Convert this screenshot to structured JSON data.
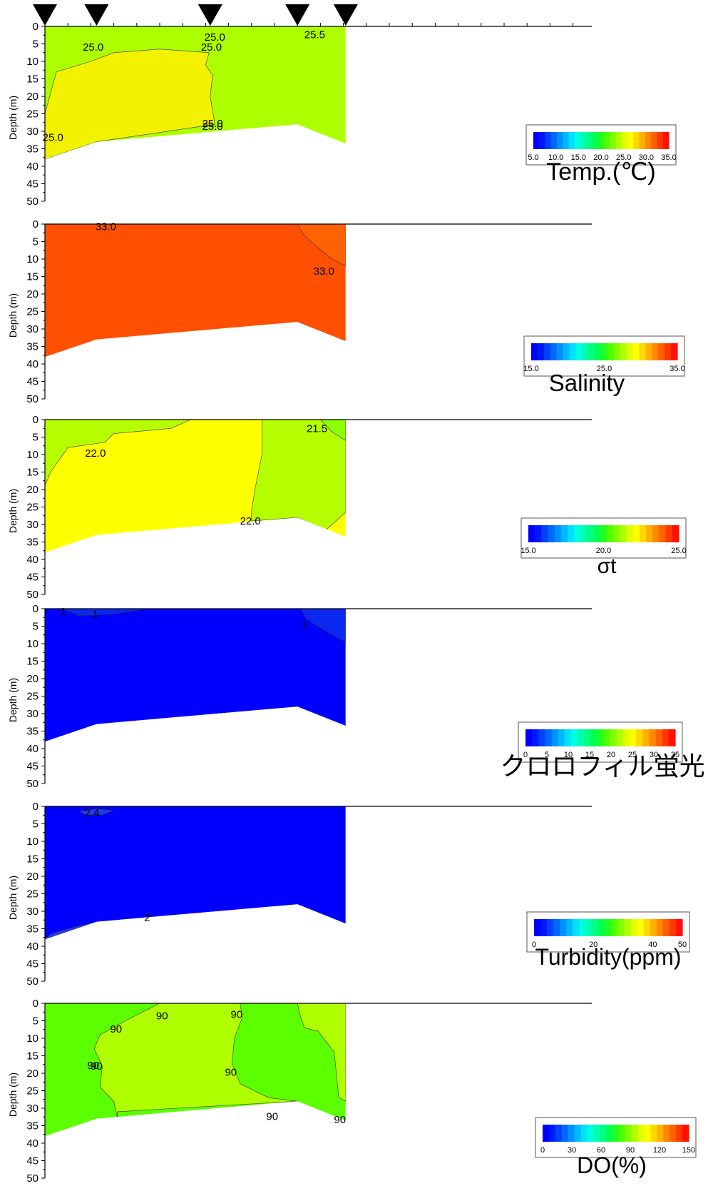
{
  "station_markers": [
    0.0,
    4.5,
    14.4,
    22.0,
    26.2
  ],
  "x_axis": {
    "min": 0,
    "max": 48,
    "tick_step": 2
  },
  "chart_data": [
    {
      "type": "contour",
      "ylabel": "Depth (m)",
      "ylim": [
        0,
        50
      ],
      "y_ticks": [
        0,
        5,
        10,
        15,
        20,
        25,
        30,
        35,
        40,
        45,
        50
      ],
      "bottom_profile": [
        [
          0,
          38
        ],
        [
          4.5,
          33
        ],
        [
          22.0,
          28
        ],
        [
          26.2,
          33.5
        ]
      ],
      "base_color": "#adff00",
      "regions": [
        {
          "color": "#f2f200",
          "points": [
            [
              0,
              25
            ],
            [
              0.5,
              19
            ],
            [
              1.0,
              13
            ],
            [
              4.0,
              10
            ],
            [
              6.0,
              7.5
            ],
            [
              10.0,
              6.5
            ],
            [
              14.3,
              7.5
            ],
            [
              14.0,
              11
            ],
            [
              14.6,
              14
            ],
            [
              14.4,
              20
            ],
            [
              14.8,
              28
            ],
            [
              4.5,
              33
            ],
            [
              0,
              38
            ]
          ]
        }
      ],
      "contour_labels": [
        "25.0",
        "25.0",
        "25.0",
        "25.5",
        "25.0",
        "25.0",
        "25.0"
      ],
      "legend": {
        "title": "Temp.(℃)",
        "min": 5.0,
        "max": 35.0,
        "tick_labels": [
          "5.0",
          "10.0",
          "15.0",
          "20.0",
          "25.0",
          "30.0",
          "35.0"
        ]
      }
    },
    {
      "type": "contour",
      "ylabel": "Depth (m)",
      "ylim": [
        0,
        50
      ],
      "y_ticks": [
        0,
        5,
        10,
        15,
        20,
        25,
        30,
        35,
        40,
        45,
        50
      ],
      "bottom_profile": [
        [
          0,
          38
        ],
        [
          4.5,
          33
        ],
        [
          22.0,
          28
        ],
        [
          26.2,
          33.5
        ]
      ],
      "base_color": "#ff4f00",
      "regions": [
        {
          "color": "#ff6200",
          "points": [
            [
              22.0,
              0
            ],
            [
              26.2,
              0
            ],
            [
              26.2,
              12
            ],
            [
              25.0,
              10
            ],
            [
              23.5,
              6
            ],
            [
              22.5,
              3
            ]
          ]
        }
      ],
      "contour_labels": [
        "33.0",
        "33.0"
      ],
      "legend": {
        "title": "Salinity",
        "min": 15.0,
        "max": 35.0,
        "tick_labels": [
          "15.0",
          "25.0",
          "35.0"
        ]
      }
    },
    {
      "type": "contour",
      "ylabel": "Depth (m)",
      "ylim": [
        0,
        50
      ],
      "y_ticks": [
        0,
        5,
        10,
        15,
        20,
        25,
        30,
        35,
        40,
        45,
        50
      ],
      "bottom_profile": [
        [
          0,
          38
        ],
        [
          4.5,
          33
        ],
        [
          22.0,
          28
        ],
        [
          26.2,
          33.5
        ]
      ],
      "base_color": "#ffff00",
      "regions": [
        {
          "color": "#b5ff00",
          "points": [
            [
              0,
              0
            ],
            [
              12.7,
              0
            ],
            [
              11.0,
              2.5
            ],
            [
              6.0,
              4
            ],
            [
              5.2,
              6.5
            ],
            [
              2.0,
              8
            ],
            [
              0.5,
              15
            ],
            [
              0,
              19
            ]
          ]
        },
        {
          "color": "#b5ff00",
          "points": [
            [
              18.9,
              0
            ],
            [
              26.2,
              0
            ],
            [
              26.2,
              26.5
            ],
            [
              24.5,
              31.5
            ],
            [
              22.0,
              28
            ],
            [
              18.0,
              29
            ],
            [
              18.0,
              26
            ],
            [
              18.3,
              20
            ],
            [
              18.9,
              10
            ]
          ]
        },
        {
          "color": "#8cff00",
          "points": [
            [
              24.0,
              0
            ],
            [
              26.2,
              0
            ],
            [
              26.2,
              6
            ],
            [
              25.0,
              3.5
            ]
          ]
        }
      ],
      "contour_labels": [
        "22.0",
        "21.5",
        "22.0"
      ],
      "legend": {
        "title": "σt",
        "min": 15.0,
        "max": 25.0,
        "tick_labels": [
          "15.0",
          "20.0",
          "25.0"
        ]
      }
    },
    {
      "type": "contour",
      "ylabel": "Depth (m)",
      "ylim": [
        0,
        50
      ],
      "y_ticks": [
        0,
        5,
        10,
        15,
        20,
        25,
        30,
        35,
        40,
        45,
        50
      ],
      "bottom_profile": [
        [
          0,
          38
        ],
        [
          4.5,
          33
        ],
        [
          22.0,
          28
        ],
        [
          26.2,
          33.5
        ]
      ],
      "base_color": "#0000ff",
      "regions": [
        {
          "color": "#0a28f0",
          "points": [
            [
              1.5,
              0
            ],
            [
              9.0,
              0
            ],
            [
              6.0,
              1.5
            ],
            [
              3.0,
              2
            ]
          ]
        },
        {
          "color": "#0a28f0",
          "points": [
            [
              22.3,
              0
            ],
            [
              26.2,
              0
            ],
            [
              26.2,
              9.5
            ],
            [
              24.5,
              6.5
            ],
            [
              22.8,
              3
            ]
          ]
        }
      ],
      "contour_labels": [
        "1",
        "1",
        "1"
      ],
      "legend": {
        "title": "クロロフィル蛍光",
        "min": 0,
        "max": 35,
        "tick_labels": [
          "0",
          "5",
          "10",
          "15",
          "20",
          "25",
          "30",
          "35"
        ]
      }
    },
    {
      "type": "contour",
      "ylabel": "Depth (m)",
      "ylim": [
        0,
        50
      ],
      "y_ticks": [
        0,
        5,
        10,
        15,
        20,
        25,
        30,
        35,
        40,
        45,
        50
      ],
      "bottom_profile": [
        [
          0,
          38
        ],
        [
          4.5,
          33
        ],
        [
          22.0,
          28
        ],
        [
          26.2,
          33.5
        ]
      ],
      "base_color": "#0000ff",
      "regions": [
        {
          "color": "#1e3cf0",
          "points": [
            [
              3.0,
              1.5
            ],
            [
              4.5,
              0.7
            ],
            [
              6.0,
              1.2
            ],
            [
              5.0,
              2.4
            ],
            [
              3.5,
              2.4
            ]
          ]
        },
        {
          "color": "#1e3cf0",
          "points": [
            [
              0,
              38
            ],
            [
              0.5,
              36.5
            ],
            [
              2.0,
              35
            ],
            [
              4.5,
              33
            ]
          ]
        }
      ],
      "contour_labels": [
        "2.4",
        "2"
      ],
      "legend": {
        "title": "Turbidity(ppm)",
        "min": 0,
        "max": 50,
        "tick_labels": [
          "0",
          "20",
          "40",
          "50"
        ]
      }
    },
    {
      "type": "contour",
      "ylabel": "Depth (m)",
      "ylim": [
        0,
        50
      ],
      "y_ticks": [
        0,
        5,
        10,
        15,
        20,
        25,
        30,
        35,
        40,
        45,
        50
      ],
      "bottom_profile": [
        [
          0,
          38
        ],
        [
          4.5,
          33
        ],
        [
          22.0,
          28
        ],
        [
          26.2,
          33.5
        ]
      ],
      "base_color": "#5cff00",
      "regions": [
        {
          "color": "#b0ff00",
          "points": [
            [
              10.0,
              0
            ],
            [
              17.0,
              0
            ],
            [
              17.2,
              4
            ],
            [
              16.5,
              10
            ],
            [
              16.3,
              17
            ],
            [
              17.0,
              23
            ],
            [
              19.5,
              27
            ],
            [
              22.0,
              28
            ],
            [
              6.3,
              31
            ],
            [
              6.3,
              32.5
            ],
            [
              6.0,
              28
            ],
            [
              4.8,
              24
            ],
            [
              5.0,
              18
            ],
            [
              4.3,
              13
            ],
            [
              4.8,
              9
            ],
            [
              7.0,
              5
            ]
          ]
        },
        {
          "color": "#b0ff00",
          "points": [
            [
              22.0,
              0
            ],
            [
              26.2,
              0
            ],
            [
              26.2,
              28
            ],
            [
              25.6,
              27
            ],
            [
              25.2,
              14
            ],
            [
              23.8,
              8
            ],
            [
              22.6,
              7
            ],
            [
              22.2,
              3
            ]
          ]
        }
      ],
      "contour_labels": [
        "90",
        "90",
        "90",
        "90",
        "90",
        "90",
        "90",
        "90"
      ],
      "legend": {
        "title": "DO(%)",
        "min": 0,
        "max": 150,
        "tick_labels": [
          "0",
          "30",
          "60",
          "90",
          "120",
          "150"
        ]
      }
    }
  ]
}
